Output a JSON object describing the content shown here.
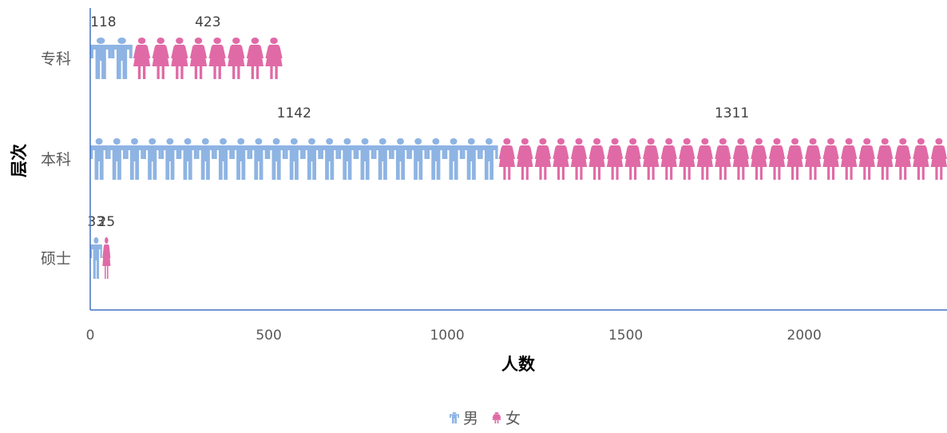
{
  "chart_data": {
    "type": "bar",
    "orientation": "horizontal",
    "stacked": true,
    "categories": [
      "专科",
      "本科",
      "硕士"
    ],
    "series": [
      {
        "name": "男",
        "values": [
          118,
          1142,
          33
        ],
        "color": "#8EB4E3",
        "icon": "male-person-icon"
      },
      {
        "name": "女",
        "values": [
          423,
          1311,
          25
        ],
        "color": "#E06AA6",
        "icon": "female-person-icon"
      }
    ],
    "xlabel": "人数",
    "ylabel": "层次",
    "xlim": [
      0,
      2400
    ],
    "xticks": [
      0,
      500,
      1000,
      1500,
      2000
    ],
    "grid": false,
    "legend": "bottom"
  }
}
